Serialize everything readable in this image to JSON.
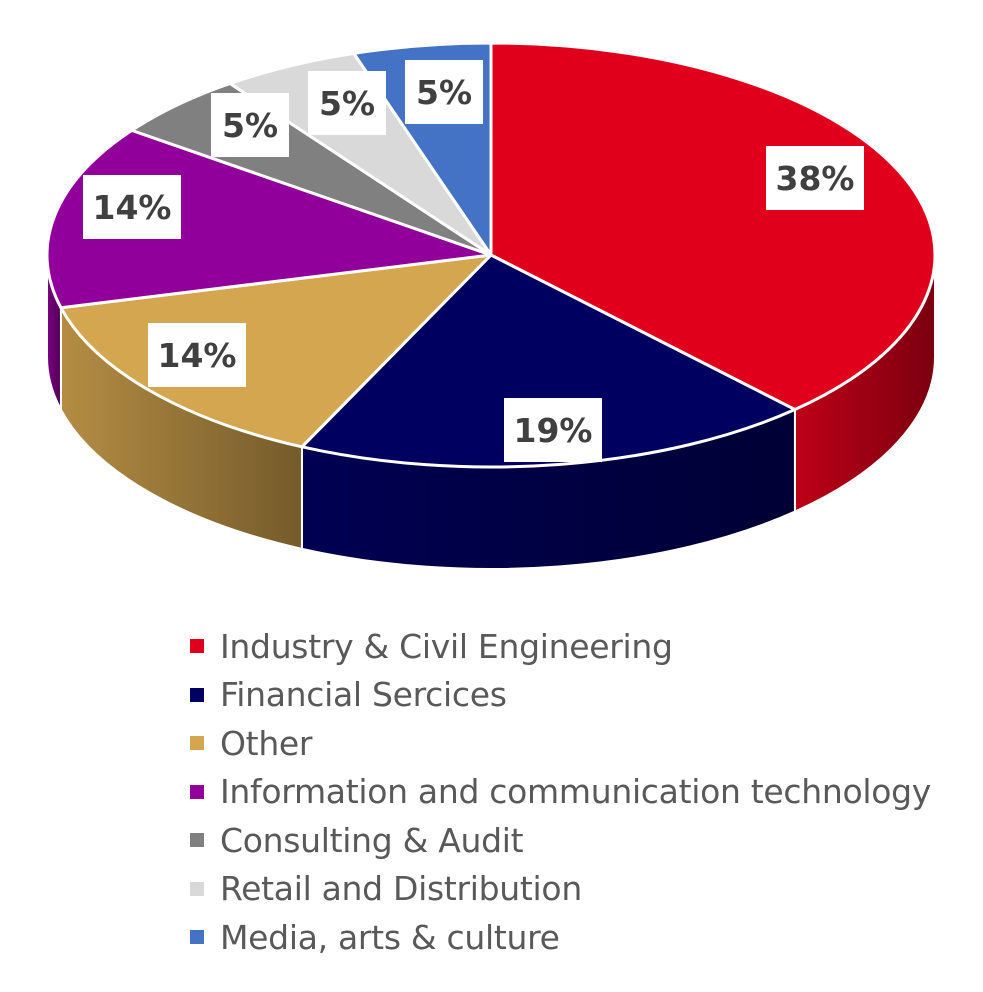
{
  "chart_data": {
    "type": "pie",
    "style": "3d",
    "title": "",
    "legend_position": "bottom",
    "series": [
      {
        "name": "Industry & Civil Engineering",
        "value": 38,
        "label": "38%",
        "color": "#E0001B"
      },
      {
        "name": "Financial Sercices",
        "value": 19,
        "label": "19%",
        "color": "#000060"
      },
      {
        "name": "Other",
        "value": 14,
        "label": "14%",
        "color": "#D4A64F"
      },
      {
        "name": "Information and communication technology",
        "value": 14,
        "label": "14%",
        "color": "#92009B"
      },
      {
        "name": "Consulting & Audit",
        "value": 5,
        "label": "5%",
        "color": "#808080"
      },
      {
        "name": "Retail and Distribution",
        "value": 5,
        "label": "5%",
        "color": "#D9D9D9"
      },
      {
        "name": "Media, arts & culture",
        "value": 5,
        "label": "5%",
        "color": "#4472C4"
      }
    ]
  }
}
